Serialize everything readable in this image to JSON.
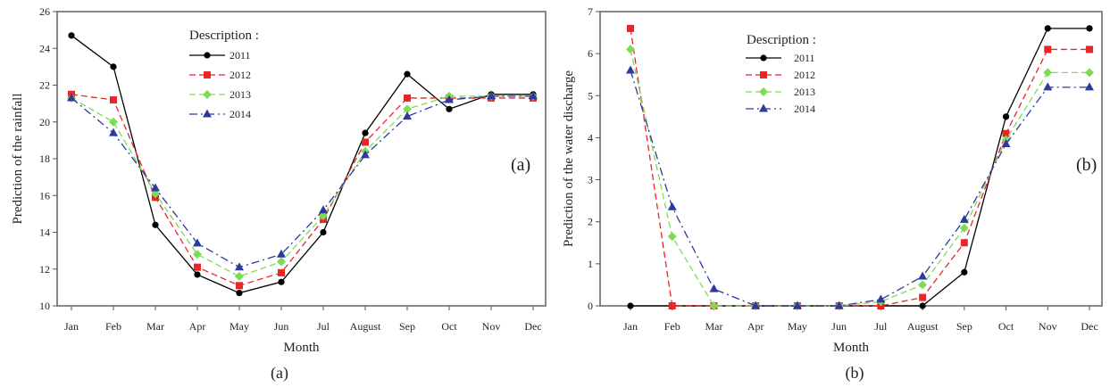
{
  "chart_data": [
    {
      "type": "line",
      "id": "a",
      "title": "",
      "xlabel": "Month",
      "ylabel": "Prediction of the rainfall",
      "ylim": [
        10,
        26
      ],
      "yticks": [
        10,
        12,
        14,
        16,
        18,
        20,
        22,
        24,
        26
      ],
      "categories": [
        "Jan",
        "Feb",
        "Mar",
        "Apr",
        "May",
        "Jun",
        "Jul",
        "August",
        "Sep",
        "Oct",
        "Nov",
        "Dec"
      ],
      "legend_title": "Description :",
      "legend_position": "top-center",
      "annotation": "(a)",
      "caption": "(a)",
      "grid": false,
      "series": [
        {
          "name": "2011",
          "color": "#000000",
          "marker": "circle",
          "dash": "solid",
          "values": [
            24.7,
            23.0,
            14.4,
            11.7,
            10.7,
            11.3,
            14.0,
            19.4,
            22.6,
            20.7,
            21.5,
            21.5
          ]
        },
        {
          "name": "2012",
          "color": "#e8262a",
          "marker": "square",
          "dash": "dashed",
          "values": [
            21.5,
            21.2,
            15.9,
            12.1,
            11.1,
            11.8,
            14.7,
            18.9,
            21.3,
            21.3,
            21.3,
            21.3
          ]
        },
        {
          "name": "2013",
          "color": "#7ddc56",
          "marker": "diamond",
          "dash": "dashed",
          "values": [
            21.3,
            20.0,
            16.1,
            12.8,
            11.6,
            12.4,
            14.9,
            18.4,
            20.7,
            21.4,
            21.4,
            21.4
          ]
        },
        {
          "name": "2014",
          "color": "#2b3a9c",
          "marker": "triangle",
          "dash": "dashdot",
          "values": [
            21.3,
            19.4,
            16.4,
            13.4,
            12.1,
            12.8,
            15.2,
            18.2,
            20.3,
            21.2,
            21.4,
            21.4
          ]
        }
      ]
    },
    {
      "type": "line",
      "id": "b",
      "title": "",
      "xlabel": "Month",
      "ylabel": "Prediction of the water discharge",
      "ylim": [
        0,
        7
      ],
      "yticks": [
        0,
        1,
        2,
        3,
        4,
        5,
        6,
        7
      ],
      "categories": [
        "Jan",
        "Feb",
        "Mar",
        "Apr",
        "May",
        "Jun",
        "Jul",
        "August",
        "Sep",
        "Oct",
        "Nov",
        "Dec"
      ],
      "legend_title": "Description :",
      "legend_position": "top-left",
      "annotation": "(b)",
      "caption": "(b)",
      "grid": false,
      "series": [
        {
          "name": "2011",
          "color": "#000000",
          "marker": "circle",
          "dash": "solid",
          "values": [
            0.0,
            0.0,
            0.0,
            0.0,
            0.0,
            0.0,
            0.0,
            0.0,
            0.8,
            4.5,
            6.6,
            6.6
          ]
        },
        {
          "name": "2012",
          "color": "#e8262a",
          "marker": "square",
          "dash": "dashed",
          "values": [
            6.6,
            0.0,
            0.0,
            0.0,
            0.0,
            0.0,
            0.0,
            0.2,
            1.5,
            4.1,
            6.1,
            6.1
          ]
        },
        {
          "name": "2013",
          "color": "#7ddc56",
          "marker": "diamond",
          "dash": "dashed",
          "values": [
            6.1,
            1.65,
            0.0,
            0.0,
            0.0,
            0.0,
            0.1,
            0.5,
            1.85,
            3.95,
            5.55,
            5.55
          ]
        },
        {
          "name": "2014",
          "color": "#2b3a9c",
          "marker": "triangle",
          "dash": "dashdot",
          "values": [
            5.6,
            2.35,
            0.4,
            0.0,
            0.0,
            0.0,
            0.15,
            0.7,
            2.05,
            3.85,
            5.2,
            5.2
          ]
        }
      ]
    }
  ]
}
